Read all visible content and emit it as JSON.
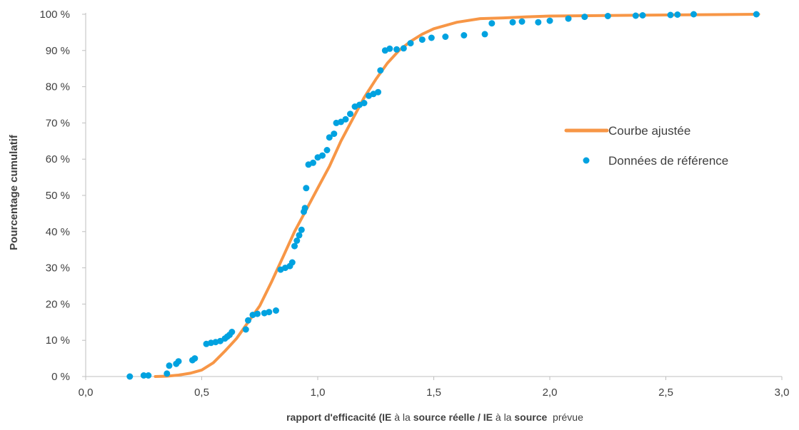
{
  "chart_data": {
    "type": "scatter",
    "xlabel_parts": [
      {
        "text": "rapport d'efficacité (IE ",
        "bold": true
      },
      {
        "text": "à la ",
        "bold": false
      },
      {
        "text": "source réelle / IE ",
        "bold": true
      },
      {
        "text": "à la ",
        "bold": false
      },
      {
        "text": "source ",
        "bold": true
      },
      {
        "text": " prévue",
        "bold": false
      }
    ],
    "ylabel": "Pourcentage cumulatif",
    "xlim": [
      0,
      3
    ],
    "ylim": [
      0,
      100
    ],
    "x_ticks": [
      "0,0",
      "0,5",
      "1,0",
      "1,5",
      "2,0",
      "2,5",
      "3,0"
    ],
    "y_ticks": [
      "0 %",
      "10 %",
      "20 %",
      "30 %",
      "40 %",
      "50 %",
      "60 %",
      "70 %",
      "80 %",
      "90 %",
      "100 %"
    ],
    "grid": false,
    "legend_position": "right",
    "series": [
      {
        "name": "Courbe ajustée",
        "kind": "line",
        "color": "#F79646",
        "points": [
          [
            0.3,
            0
          ],
          [
            0.35,
            0.1
          ],
          [
            0.4,
            0.4
          ],
          [
            0.45,
            0.9
          ],
          [
            0.5,
            1.8
          ],
          [
            0.55,
            3.8
          ],
          [
            0.6,
            7
          ],
          [
            0.65,
            10.5
          ],
          [
            0.7,
            15
          ],
          [
            0.75,
            19.5
          ],
          [
            0.8,
            26
          ],
          [
            0.85,
            33
          ],
          [
            0.9,
            40
          ],
          [
            0.95,
            46
          ],
          [
            1.0,
            52
          ],
          [
            1.05,
            58
          ],
          [
            1.1,
            65
          ],
          [
            1.15,
            71
          ],
          [
            1.2,
            77
          ],
          [
            1.25,
            82
          ],
          [
            1.3,
            86.5
          ],
          [
            1.35,
            90
          ],
          [
            1.4,
            92.5
          ],
          [
            1.45,
            94.5
          ],
          [
            1.5,
            96
          ],
          [
            1.6,
            97.8
          ],
          [
            1.7,
            98.8
          ],
          [
            1.8,
            99
          ],
          [
            1.9,
            99.3
          ],
          [
            2.0,
            99.5
          ],
          [
            2.5,
            99.8
          ],
          [
            2.9,
            100
          ]
        ]
      },
      {
        "name": "Données de référence",
        "kind": "scatter",
        "color": "#00A2E0",
        "points": [
          [
            0.19,
            0
          ],
          [
            0.25,
            0.3
          ],
          [
            0.27,
            0.3
          ],
          [
            0.35,
            0.8
          ],
          [
            0.36,
            3
          ],
          [
            0.39,
            3.5
          ],
          [
            0.4,
            4.2
          ],
          [
            0.46,
            4.5
          ],
          [
            0.47,
            5
          ],
          [
            0.52,
            9
          ],
          [
            0.54,
            9.3
          ],
          [
            0.56,
            9.5
          ],
          [
            0.58,
            9.8
          ],
          [
            0.6,
            10.5
          ],
          [
            0.61,
            11
          ],
          [
            0.62,
            11.5
          ],
          [
            0.63,
            12.3
          ],
          [
            0.69,
            13
          ],
          [
            0.7,
            15.5
          ],
          [
            0.72,
            17
          ],
          [
            0.74,
            17.3
          ],
          [
            0.77,
            17.5
          ],
          [
            0.79,
            17.8
          ],
          [
            0.82,
            18.2
          ],
          [
            0.84,
            29.5
          ],
          [
            0.86,
            30
          ],
          [
            0.88,
            30.5
          ],
          [
            0.89,
            31.5
          ],
          [
            0.9,
            36
          ],
          [
            0.91,
            37.5
          ],
          [
            0.92,
            39
          ],
          [
            0.93,
            40.5
          ],
          [
            0.94,
            45.5
          ],
          [
            0.945,
            46.5
          ],
          [
            0.95,
            52
          ],
          [
            0.96,
            58.5
          ],
          [
            0.98,
            59
          ],
          [
            1.0,
            60.5
          ],
          [
            1.02,
            61
          ],
          [
            1.04,
            62.5
          ],
          [
            1.05,
            66
          ],
          [
            1.07,
            67
          ],
          [
            1.08,
            70
          ],
          [
            1.1,
            70.3
          ],
          [
            1.12,
            71
          ],
          [
            1.14,
            72.5
          ],
          [
            1.16,
            74.5
          ],
          [
            1.18,
            75
          ],
          [
            1.2,
            75.5
          ],
          [
            1.22,
            77.5
          ],
          [
            1.24,
            78
          ],
          [
            1.26,
            78.5
          ],
          [
            1.27,
            84.5
          ],
          [
            1.29,
            90
          ],
          [
            1.31,
            90.5
          ],
          [
            1.34,
            90.3
          ],
          [
            1.37,
            90.6
          ],
          [
            1.4,
            92
          ],
          [
            1.45,
            93
          ],
          [
            1.49,
            93.5
          ],
          [
            1.55,
            93.8
          ],
          [
            1.63,
            94.2
          ],
          [
            1.72,
            94.5
          ],
          [
            1.75,
            97.5
          ],
          [
            1.84,
            97.8
          ],
          [
            1.88,
            98
          ],
          [
            1.95,
            97.8
          ],
          [
            2.0,
            98.2
          ],
          [
            2.08,
            98.8
          ],
          [
            2.15,
            99.3
          ],
          [
            2.25,
            99.5
          ],
          [
            2.37,
            99.6
          ],
          [
            2.4,
            99.7
          ],
          [
            2.52,
            99.8
          ],
          [
            2.55,
            99.9
          ],
          [
            2.62,
            100
          ],
          [
            2.89,
            100
          ]
        ]
      }
    ]
  }
}
